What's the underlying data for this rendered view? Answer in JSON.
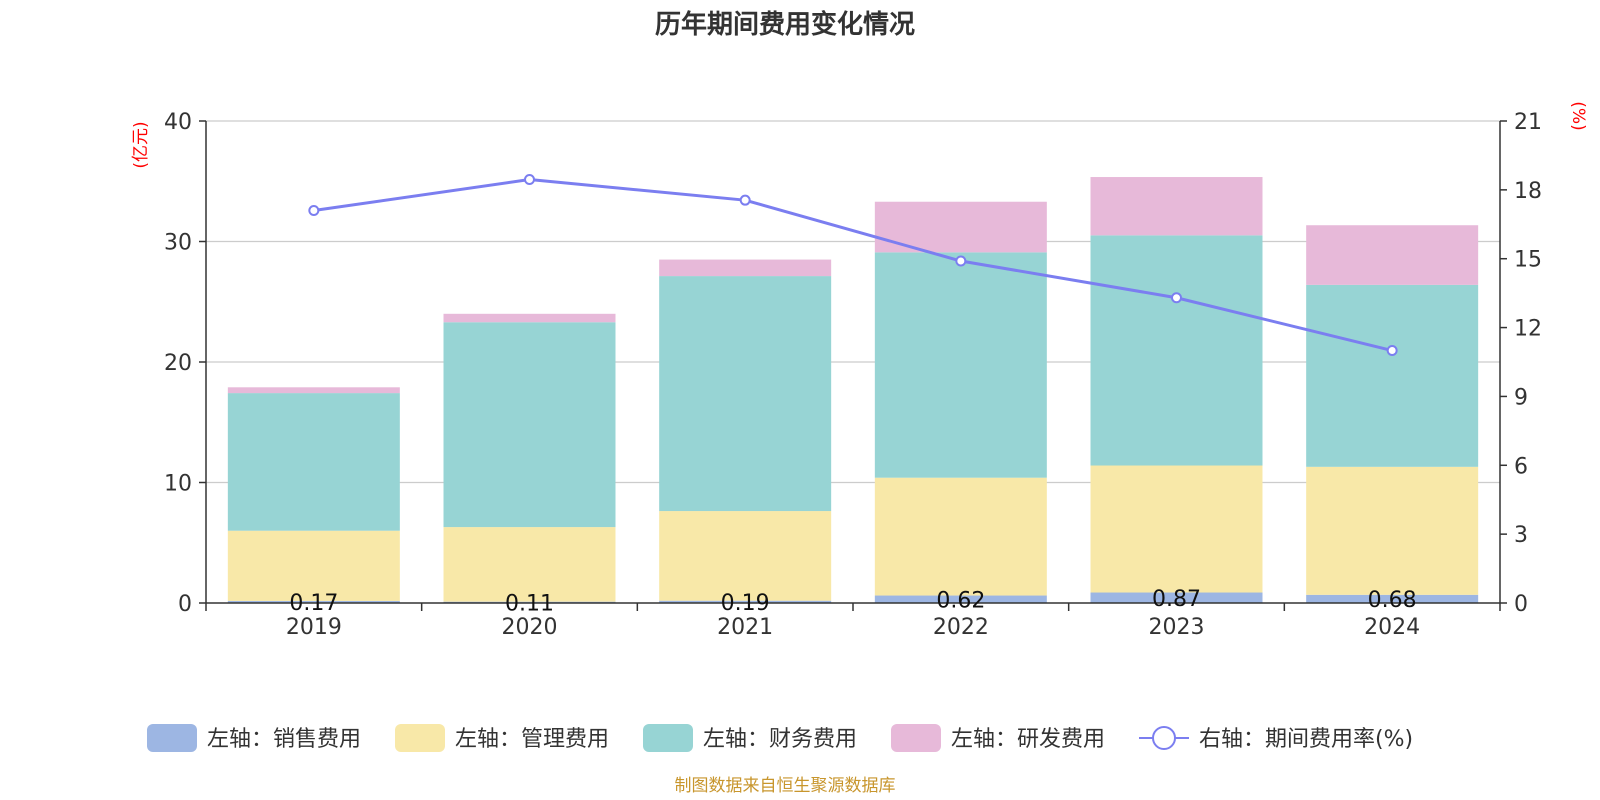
{
  "chart_data": {
    "type": "bar",
    "title": "历年期间费用变化情况",
    "categories": [
      "2019",
      "2020",
      "2021",
      "2022",
      "2023",
      "2024"
    ],
    "left_axis": {
      "unit": "(亿元)",
      "ylim": [
        0,
        40
      ],
      "ticks": [
        0,
        10,
        20,
        30,
        40
      ],
      "tick_labels": [
        "0",
        "10",
        "20",
        "30",
        "40"
      ]
    },
    "right_axis": {
      "unit": "(%)",
      "ylim": [
        0,
        21
      ],
      "ticks": [
        0,
        3,
        6,
        9,
        12,
        15,
        18,
        21
      ],
      "tick_labels": [
        "0",
        "3",
        "6",
        "9",
        "12",
        "15",
        "18",
        "21"
      ]
    },
    "stacked": true,
    "grid": true,
    "legend_position": "bottom",
    "series": [
      {
        "name": "左轴：销售费用",
        "axis": "left",
        "type": "bar",
        "color": "#9db6e3",
        "values": [
          0.17,
          0.11,
          0.19,
          0.62,
          0.87,
          0.68
        ],
        "data_labels": [
          "0.17",
          "0.11",
          "0.19",
          "0.62",
          "0.87",
          "0.68"
        ]
      },
      {
        "name": "左轴：管理费用",
        "axis": "left",
        "type": "bar",
        "color": "#f8e8a8",
        "values": [
          5.83,
          6.19,
          7.44,
          9.78,
          10.54,
          10.62
        ]
      },
      {
        "name": "左轴：财务费用",
        "axis": "left",
        "type": "bar",
        "color": "#97d4d4",
        "values": [
          11.42,
          17.0,
          19.5,
          18.7,
          19.1,
          15.1
        ]
      },
      {
        "name": "左轴：研发费用",
        "axis": "left",
        "type": "bar",
        "color": "#e7b9d9",
        "values": [
          0.48,
          0.7,
          1.37,
          4.2,
          4.84,
          4.95
        ]
      },
      {
        "name": "右轴：期间费用率(%)",
        "axis": "right",
        "type": "line",
        "color": "#7b7ef0",
        "values": [
          17.1,
          18.45,
          17.55,
          14.9,
          13.3,
          11.0
        ]
      }
    ]
  },
  "footer": {
    "source": "制图数据来自恒生聚源数据库"
  }
}
